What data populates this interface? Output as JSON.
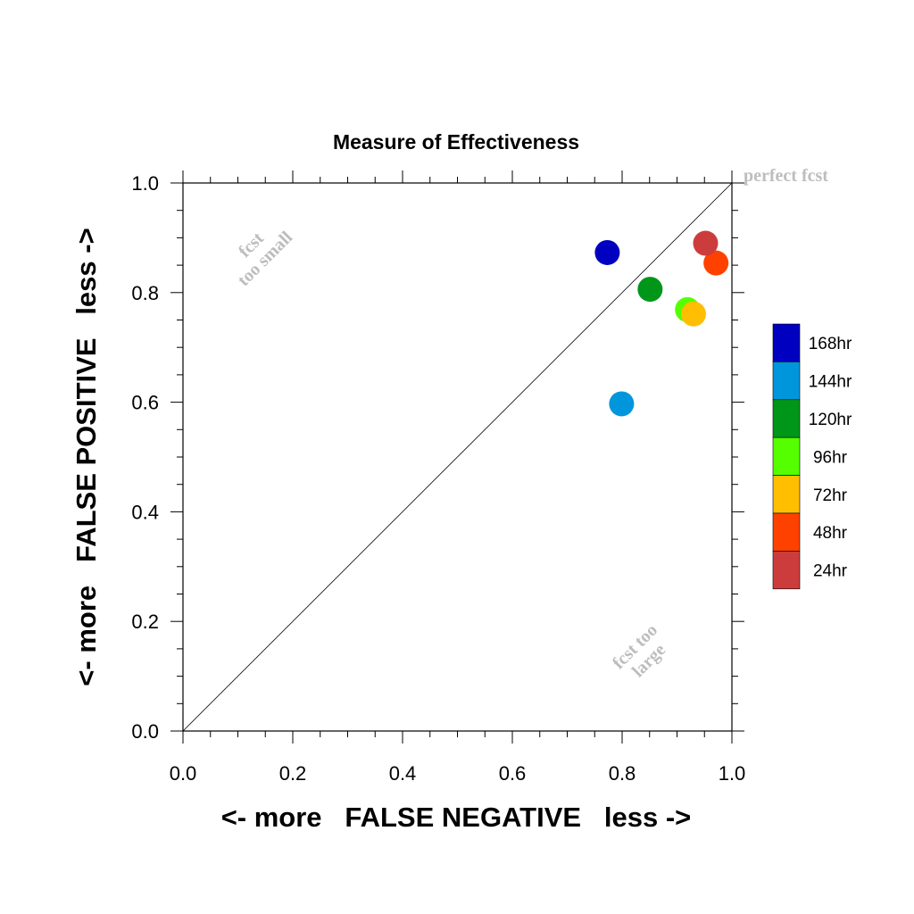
{
  "chart_data": {
    "type": "scatter",
    "title": "Measure of Effectiveness",
    "xlabel": "<- more   FALSE NEGATIVE   less ->",
    "ylabel": "<- more   FALSE POSITIVE   less ->",
    "xlim": [
      0,
      1
    ],
    "ylim": [
      0,
      1
    ],
    "x_ticks": [
      "0.0",
      "0.2",
      "0.4",
      "0.6",
      "0.8",
      "1.0"
    ],
    "y_ticks": [
      "0.0",
      "0.2",
      "0.4",
      "0.6",
      "0.8",
      "1.0"
    ],
    "grid": false,
    "diagonal_reference_line": true,
    "annotations": {
      "perfect": "perfect fcst",
      "too_small": [
        "fcst",
        "too small"
      ],
      "too_large": [
        "fcst too",
        "large"
      ]
    },
    "legend_position": "right",
    "series": [
      {
        "name": "168hr",
        "color": "#0000c0",
        "x": 0.773,
        "y": 0.873
      },
      {
        "name": "144hr",
        "color": "#0096dc",
        "x": 0.799,
        "y": 0.597
      },
      {
        "name": "120hr",
        "color": "#009619",
        "x": 0.851,
        "y": 0.806
      },
      {
        "name": "96hr",
        "color": "#55ff00",
        "x": 0.919,
        "y": 0.769
      },
      {
        "name": "72hr",
        "color": "#ffbe00",
        "x": 0.93,
        "y": 0.761
      },
      {
        "name": "48hr",
        "color": "#ff4100",
        "x": 0.971,
        "y": 0.854
      },
      {
        "name": "24hr",
        "color": "#cd3c3c",
        "x": 0.952,
        "y": 0.89
      }
    ]
  }
}
